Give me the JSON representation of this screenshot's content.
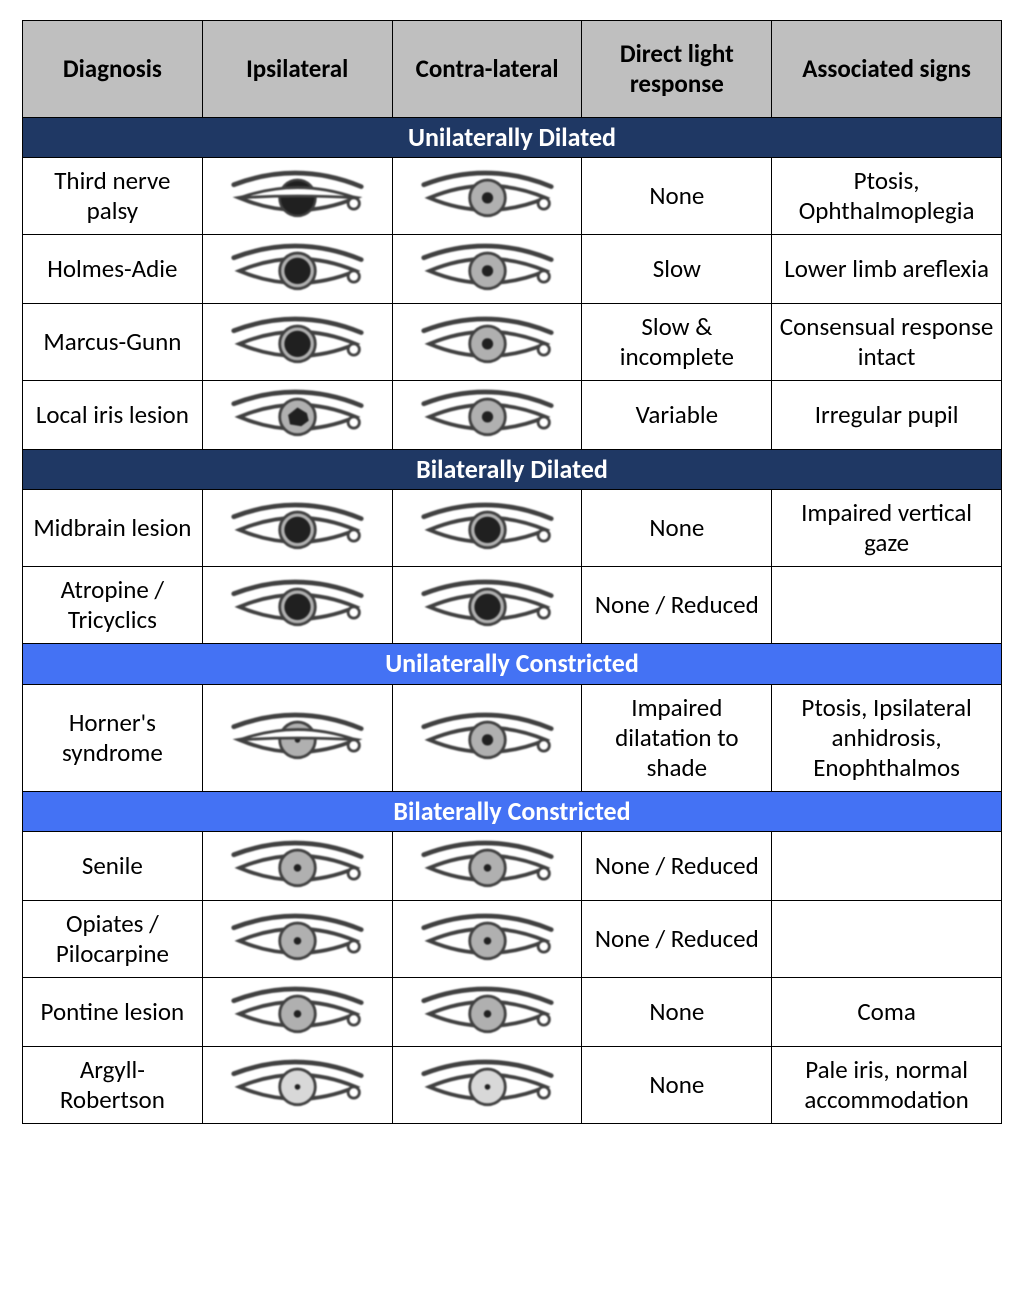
{
  "colors": {
    "header_bg": "#bfbfbf",
    "section_dark_bg": "#1f3864",
    "section_light_bg": "#4472f4",
    "section_text": "#ffffff",
    "border": "#000000",
    "iris_fill": "#b0b0b0",
    "eye_stroke": "#404040",
    "pupil_fill": "#202020"
  },
  "columns": [
    "Diagnosis",
    "Ipsilateral",
    "Contra-lateral",
    "Direct light response",
    "Associated signs"
  ],
  "sections": [
    {
      "title": "Unilaterally Dilated",
      "style": "dark",
      "rows": [
        {
          "diagnosis": "Third nerve palsy",
          "ipsi": {
            "pupil_r": 22,
            "shape": "full-dilated",
            "ptosis": true
          },
          "contra": {
            "pupil_r": 6,
            "shape": "normal"
          },
          "response": "None",
          "signs": "Ptosis, Ophthalmoplegia"
        },
        {
          "diagnosis": "Holmes-Adie",
          "ipsi": {
            "pupil_r": 14,
            "shape": "dilated"
          },
          "contra": {
            "pupil_r": 6,
            "shape": "normal"
          },
          "response": "Slow",
          "signs": "Lower limb areflexia"
        },
        {
          "diagnosis": "Marcus-Gunn",
          "ipsi": {
            "pupil_r": 14,
            "shape": "dilated"
          },
          "contra": {
            "pupil_r": 6,
            "shape": "normal"
          },
          "response": "Slow & incomplete",
          "signs": "Consensual response intact"
        },
        {
          "diagnosis": "Local iris lesion",
          "ipsi": {
            "pupil_r": 10,
            "shape": "irregular"
          },
          "contra": {
            "pupil_r": 6,
            "shape": "normal"
          },
          "response": "Variable",
          "signs": "Irregular pupil"
        }
      ]
    },
    {
      "title": "Bilaterally Dilated",
      "style": "dark",
      "rows": [
        {
          "diagnosis": "Midbrain lesion",
          "ipsi": {
            "pupil_r": 14,
            "shape": "dilated"
          },
          "contra": {
            "pupil_r": 14,
            "shape": "dilated"
          },
          "response": "None",
          "signs": "Impaired vertical gaze"
        },
        {
          "diagnosis": "Atropine / Tricyclics",
          "ipsi": {
            "pupil_r": 14,
            "shape": "dilated"
          },
          "contra": {
            "pupil_r": 14,
            "shape": "dilated"
          },
          "response": "None / Reduced",
          "signs": ""
        }
      ]
    },
    {
      "title": "Unilaterally Constricted",
      "style": "light",
      "rows": [
        {
          "diagnosis": "Horner's syndrome",
          "ipsi": {
            "pupil_r": 3,
            "shape": "constricted",
            "ptosis": true
          },
          "contra": {
            "pupil_r": 6,
            "shape": "normal"
          },
          "response": "Impaired dilatation to shade",
          "signs": "Ptosis, Ipsilateral anhidrosis, Enophthalmos"
        }
      ]
    },
    {
      "title": "Bilaterally Constricted",
      "style": "light",
      "rows": [
        {
          "diagnosis": "Senile",
          "ipsi": {
            "pupil_r": 4,
            "shape": "constricted"
          },
          "contra": {
            "pupil_r": 4,
            "shape": "constricted"
          },
          "response": "None / Reduced",
          "signs": ""
        },
        {
          "diagnosis": "Opiates / Pilocarpine",
          "ipsi": {
            "pupil_r": 4,
            "shape": "constricted"
          },
          "contra": {
            "pupil_r": 4,
            "shape": "constricted"
          },
          "response": "None / Reduced",
          "signs": ""
        },
        {
          "diagnosis": "Pontine lesion",
          "ipsi": {
            "pupil_r": 4,
            "shape": "constricted"
          },
          "contra": {
            "pupil_r": 4,
            "shape": "constricted"
          },
          "response": "None",
          "signs": "Coma"
        },
        {
          "diagnosis": "Argyll-Robertson",
          "ipsi": {
            "pupil_r": 3,
            "shape": "constricted",
            "pale_iris": true
          },
          "contra": {
            "pupil_r": 3,
            "shape": "constricted",
            "pale_iris": true
          },
          "response": "None",
          "signs": "Pale iris, normal accommodation"
        }
      ]
    }
  ]
}
